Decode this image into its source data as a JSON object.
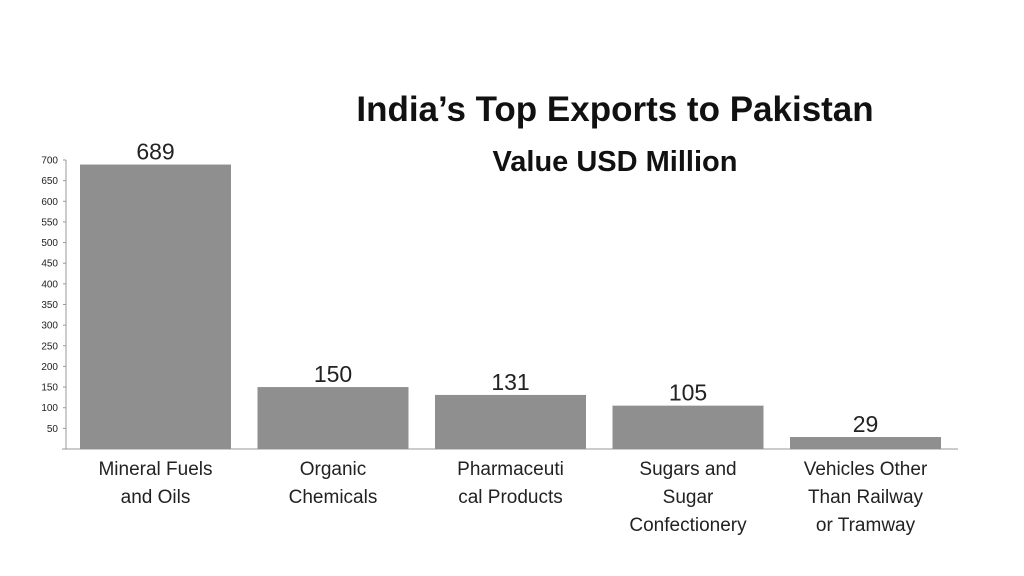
{
  "title": "India’s Top Exports to Pakistan",
  "subtitle": "Value USD Million",
  "colors": {
    "bar": "#8f8f8f",
    "axis": "#999999",
    "text": "#222222"
  },
  "chart_data": {
    "type": "bar",
    "title": "India’s Top Exports to Pakistan",
    "subtitle": "Value USD Million",
    "categories": [
      [
        "Mineral Fuels",
        "and Oils"
      ],
      [
        "Organic",
        "Chemicals"
      ],
      [
        "Pharmaceuti",
        "cal Products"
      ],
      [
        "Sugars and",
        "Sugar",
        "Confectionery"
      ],
      [
        "Vehicles Other",
        "Than Railway",
        "or Tramway"
      ]
    ],
    "values": [
      689,
      150,
      131,
      105,
      29
    ],
    "data_labels": [
      "689",
      "150",
      "131",
      "105",
      "29"
    ],
    "yticks": [
      "50",
      "100",
      "150",
      "200",
      "250",
      "300",
      "350",
      "400",
      "450",
      "500",
      "550",
      "600",
      "650",
      "700"
    ],
    "ylim": [
      0,
      700
    ],
    "grid": false,
    "legend": "none"
  }
}
